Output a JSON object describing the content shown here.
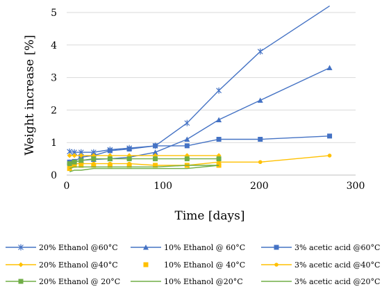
{
  "chart_data": {
    "type": "line",
    "title": "",
    "xlabel": "Time [days]",
    "ylabel": "Weight increase [%]",
    "xlim": [
      0,
      300
    ],
    "ylim": [
      0,
      5
    ],
    "xticks": [
      0,
      100,
      200,
      300
    ],
    "yticks": [
      0,
      1,
      2,
      3,
      4,
      5
    ],
    "grid": "horizontal",
    "legend_position": "bottom",
    "series": [
      {
        "name": "20% Ethanol @60°C",
        "color": "#4472C4",
        "marker": "star",
        "line": true,
        "x": [
          3,
          8,
          15,
          28,
          45,
          65,
          92,
          125,
          158,
          201,
          273
        ],
        "y": [
          0.72,
          0.7,
          0.7,
          0.7,
          0.78,
          0.83,
          0.9,
          1.6,
          2.6,
          3.8,
          5.2
        ]
      },
      {
        "name": "10% Ethanol @ 60°C",
        "color": "#4472C4",
        "marker": "triangle",
        "line": true,
        "x": [
          3,
          8,
          15,
          28,
          45,
          65,
          92,
          125,
          158,
          201,
          273
        ],
        "y": [
          0.4,
          0.4,
          0.45,
          0.48,
          0.5,
          0.55,
          0.7,
          1.1,
          1.7,
          2.3,
          3.3
        ]
      },
      {
        "name": "3% acetic acid @60°C",
        "color": "#4472C4",
        "marker": "square",
        "line": true,
        "x": [
          3,
          8,
          15,
          28,
          45,
          65,
          92,
          125,
          158,
          201,
          273
        ],
        "y": [
          0.4,
          0.42,
          0.55,
          0.6,
          0.75,
          0.8,
          0.9,
          0.9,
          1.1,
          1.1,
          1.2
        ]
      },
      {
        "name": "20% Ethanol @40°C",
        "color": "#FFC000",
        "marker": "diamond",
        "line": true,
        "x": [
          3,
          8,
          15,
          28,
          45,
          65,
          92,
          125,
          158
        ],
        "y": [
          0.6,
          0.6,
          0.6,
          0.6,
          0.6,
          0.6,
          0.6,
          0.6,
          0.6
        ]
      },
      {
        "name": "10% Ethanol @ 40°C",
        "color": "#FFC000",
        "marker": "square",
        "line": false,
        "x": [
          3,
          8,
          15,
          28,
          45,
          65,
          92,
          125,
          158
        ],
        "y": [
          0.2,
          0.3,
          0.3,
          0.3,
          0.3,
          0.3,
          0.3,
          0.3,
          0.3
        ]
      },
      {
        "name": "3% acetic acid @40°C",
        "color": "#FFC000",
        "marker": "circle",
        "line": true,
        "x": [
          3,
          8,
          15,
          28,
          45,
          65,
          92,
          125,
          158,
          201,
          273
        ],
        "y": [
          0.3,
          0.35,
          0.35,
          0.35,
          0.35,
          0.35,
          0.3,
          0.3,
          0.4,
          0.4,
          0.6
        ]
      },
      {
        "name": "20% Ethanol @ 20°C",
        "color": "#70AD47",
        "marker": "square",
        "line": true,
        "x": [
          3,
          8,
          15,
          28,
          45,
          65,
          92,
          125,
          158
        ],
        "y": [
          0.35,
          0.4,
          0.45,
          0.5,
          0.5,
          0.5,
          0.5,
          0.5,
          0.5
        ]
      },
      {
        "name": "10% Ethanol @20°C",
        "color": "#70AD47",
        "marker": "none",
        "line": true,
        "x": [
          3,
          8,
          15,
          28,
          45,
          65,
          92,
          125,
          158
        ],
        "y": [
          0.2,
          0.25,
          0.25,
          0.25,
          0.25,
          0.25,
          0.25,
          0.3,
          0.3
        ]
      },
      {
        "name": "3% acetic acid @20°C",
        "color": "#70AD47",
        "marker": "none",
        "line": true,
        "x": [
          3,
          8,
          15,
          28,
          45,
          65,
          92,
          125,
          158
        ],
        "y": [
          0.1,
          0.15,
          0.15,
          0.2,
          0.2,
          0.2,
          0.2,
          0.2,
          0.3
        ]
      }
    ]
  }
}
